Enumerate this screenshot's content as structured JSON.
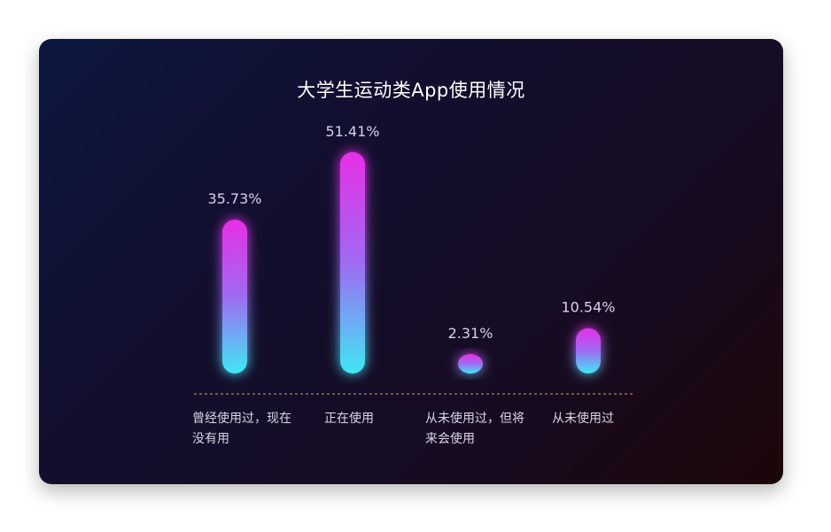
{
  "colors": {
    "bar_top": "#e72ee6",
    "bar_mid": "#9e6bf2",
    "bar_bottom": "#40e8f4",
    "baseline": "#c9a37a"
  },
  "chart_data": {
    "type": "bar",
    "title": "大学生运动类App使用情况",
    "categories": [
      "曾经使用过，现在没有用",
      "正在使用",
      "从未使用过，但将来会使用",
      "从未使用过"
    ],
    "values": [
      35.73,
      51.41,
      2.31,
      10.54
    ],
    "value_labels": [
      "35.73%",
      "51.41%",
      "2.31%",
      "10.54%"
    ],
    "ylim": [
      0,
      60
    ],
    "grid": false,
    "legend": "none"
  }
}
